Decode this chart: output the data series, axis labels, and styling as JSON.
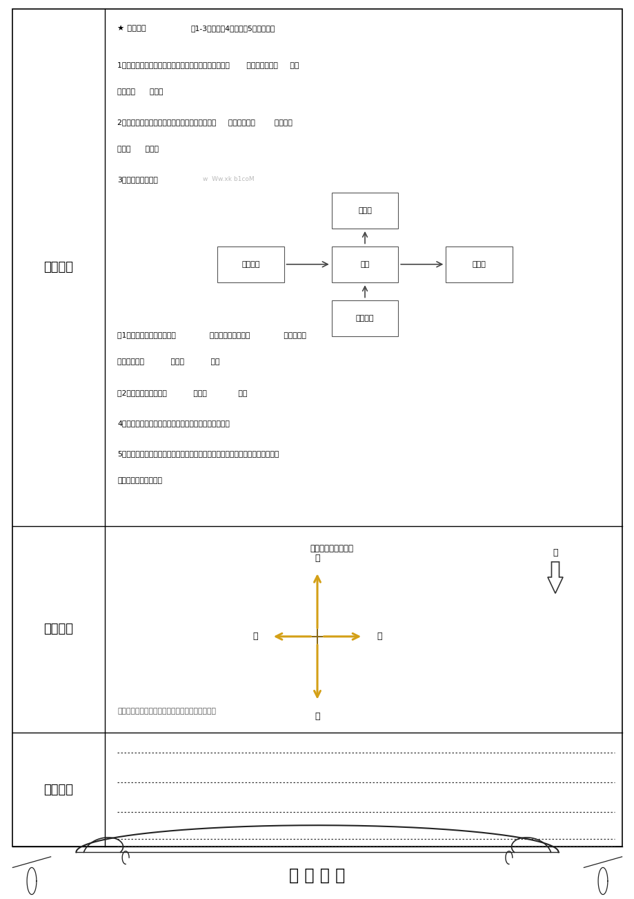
{
  "bg_color": "#ffffff",
  "border_color": "#000000",
  "section1_label": "作业设计",
  "section2_label": "板书设计",
  "section3_label": "课后小结",
  "star_text": "★ 堂清检测",
  "subtitle_text": "（1-3题必做，4题选做，5题思考题）",
  "q1": "1、早晨，太阳从东方升起，我面向太阳，我的后面是（       ）方，左边是（     ），",
  "q1b": "右边是（      ）方。",
  "q2": "2、傍晚，夕阳西下，我面向太阳，我的后面是（     ），左边是（        ）方，右",
  "q2b": "边是（      ）方。",
  "q3": "3、看图回答问题：",
  "q3_watermark": "w  Ww.xk b1coM",
  "box_tiyuchang": "体育场",
  "box_xuexiao": "学校",
  "box_shaoniangong": "少年宫",
  "box_yangguang": "阳光超市",
  "box_renmin": "人民公园",
  "qa1": "（1）上图中学校的北面是（              ），学校的南面是（              ）。阳光超",
  "qa1b": "市的东面有（           ），（           ）。",
  "qa2": "（2）少年宫的西面有（           ），（             ）。",
  "q4": "4、坐在自己的座位看看你的东南西北分别是哪位同学？",
  "q5": "5、你家的大门是朝哪个方向？东南西北的邻居是谁？和邻居之间发生过什么有趣",
  "q5b": "的故事说给大家听听？",
  "bs_title": "认识东、南、西、北",
  "bs_arrow_color": "#D4A017",
  "bs_summary": "当你面向北时，后面是南，左面是西，右面是东。",
  "footer_text": "教 学 设 计"
}
